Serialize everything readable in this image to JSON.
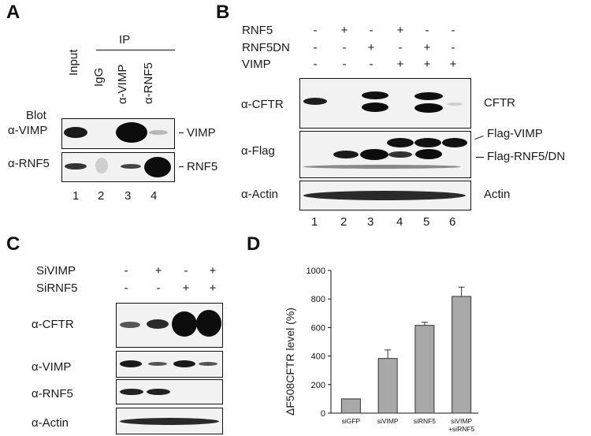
{
  "panels": {
    "a": "A",
    "b": "B",
    "c": "C",
    "d": "D"
  },
  "panel_a": {
    "ip_header": "IP",
    "lanes": [
      "Input",
      "IgG",
      "α-VIMP",
      "α-RNF5"
    ],
    "blot_label": "Blot",
    "rows": [
      "α-VIMP",
      "α-RNF5"
    ],
    "right_labels": [
      "VIMP",
      "RNF5"
    ],
    "lane_numbers": [
      "1",
      "2",
      "3",
      "4"
    ]
  },
  "panel_b": {
    "conditions": [
      {
        "name": "RNF5",
        "signs": [
          "-",
          "+",
          "-",
          "+",
          "-",
          "-"
        ]
      },
      {
        "name": "RNF5DN",
        "signs": [
          "-",
          "-",
          "+",
          "-",
          "+",
          "-"
        ]
      },
      {
        "name": "VIMP",
        "signs": [
          "-",
          "-",
          "-",
          "+",
          "+",
          "+"
        ]
      }
    ],
    "rows": [
      "α-CFTR",
      "α-Flag",
      "α-Actin"
    ],
    "right_labels": [
      "CFTR",
      "Flag-VIMP",
      "Flag-RNF5/DN",
      "Actin"
    ],
    "lane_numbers": [
      "1",
      "2",
      "3",
      "4",
      "5",
      "6"
    ]
  },
  "panel_c": {
    "conditions": [
      {
        "name": "SiVIMP",
        "signs": [
          "-",
          "+",
          "-",
          "+"
        ]
      },
      {
        "name": "SiRNF5",
        "signs": [
          "-",
          "-",
          "+",
          "+"
        ]
      }
    ],
    "rows": [
      "α-CFTR",
      "α-VIMP",
      "α-RNF5",
      "α-Actin"
    ]
  },
  "chart_data": {
    "type": "bar",
    "categories": [
      "siGFP",
      "siVIMP",
      "siRNF5",
      "siVIMP\n+siRNF5"
    ],
    "values": [
      100,
      383,
      615,
      818
    ],
    "errors": [
      0,
      60,
      22,
      65
    ],
    "ylabel": "ΔF508CFTR level (%)",
    "ylim": [
      0,
      1000
    ],
    "yticks": [
      0,
      200,
      400,
      600,
      800,
      1000
    ],
    "bar_color": "#a8a8a8"
  }
}
